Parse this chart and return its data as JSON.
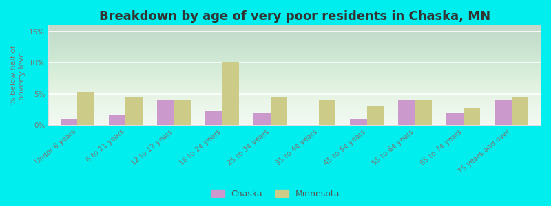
{
  "categories": [
    "Under 6 years",
    "6 to 11 years",
    "12 to 17 years",
    "18 to 24 years",
    "25 to 34 years",
    "35 to 44 years",
    "45 to 54 years",
    "55 to 64 years",
    "65 to 74 years",
    "75 years and over"
  ],
  "chaska": [
    1.0,
    1.5,
    4.0,
    2.3,
    2.0,
    0.0,
    1.0,
    4.0,
    2.0,
    4.0
  ],
  "minnesota": [
    5.3,
    4.5,
    4.0,
    10.0,
    4.5,
    4.0,
    3.0,
    4.0,
    2.7,
    4.5
  ],
  "chaska_color": "#cc99cc",
  "minnesota_color": "#cccc88",
  "outer_background": "#00eeee",
  "title": "Breakdown by age of very poor residents in Chaska, MN",
  "ylabel": "% below half of\npoverty level",
  "ylim": [
    0,
    16
  ],
  "yticks": [
    0,
    5,
    10,
    15
  ],
  "ytick_labels": [
    "0%",
    "5%",
    "10%",
    "15%"
  ],
  "bar_width": 0.35,
  "title_fontsize": 13,
  "axis_label_fontsize": 8,
  "tick_fontsize": 7.5,
  "legend_labels": [
    "Chaska",
    "Minnesota"
  ]
}
